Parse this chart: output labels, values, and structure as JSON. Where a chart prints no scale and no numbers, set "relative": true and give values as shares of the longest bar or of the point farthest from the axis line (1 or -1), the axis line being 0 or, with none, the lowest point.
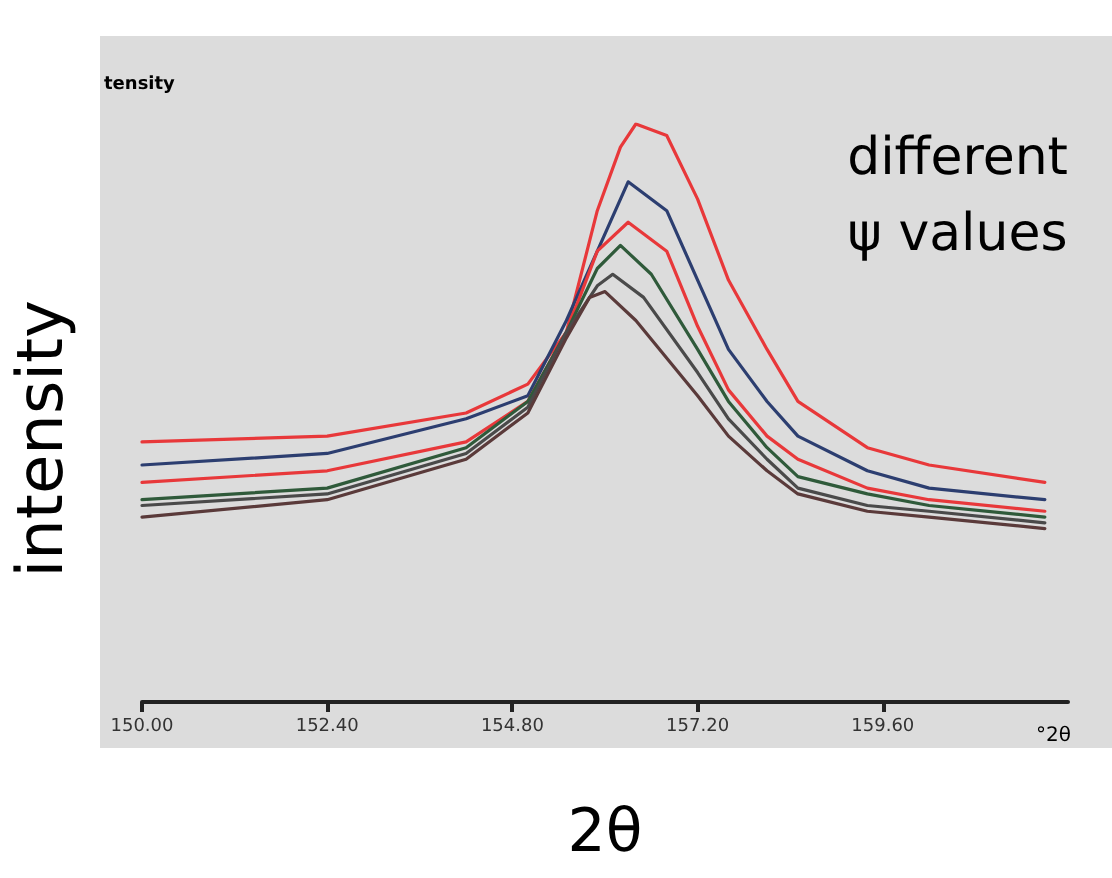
{
  "chart_data": {
    "type": "line",
    "relative": true,
    "xlabel": "2θ",
    "ylabel": "intensity",
    "annotations": [
      "different\nψ values",
      "tensity",
      "°2θ"
    ],
    "xlim": [
      150,
      162
    ],
    "xticks": [
      {
        "value": 150,
        "label": "150.00"
      },
      {
        "value": 152.4,
        "label": "152.40"
      },
      {
        "value": 154.8,
        "label": "154.80"
      },
      {
        "value": 157.2,
        "label": "157.20"
      },
      {
        "value": 159.6,
        "label": "159.60"
      }
    ],
    "grid": false,
    "marker": "none",
    "line_style": "solid",
    "series": [
      {
        "color": "#e8383a",
        "x": [
          150,
          152.4,
          154.2,
          155,
          155.5,
          155.9,
          156.2,
          156.4,
          156.8,
          157.2,
          157.6,
          158.1,
          158.5,
          159.4,
          160.2,
          161.7
        ],
        "values": [
          0.45,
          0.46,
          0.5,
          0.55,
          0.64,
          0.85,
          0.96,
          1,
          0.98,
          0.87,
          0.73,
          0.61,
          0.52,
          0.44,
          0.41,
          0.38
        ]
      },
      {
        "color": "#2c3e70",
        "x": [
          150,
          152.4,
          154.2,
          155,
          155.5,
          156.3,
          156.8,
          157.2,
          157.6,
          158.1,
          158.5,
          159.4,
          160.2,
          161.7
        ],
        "values": [
          0.41,
          0.43,
          0.49,
          0.53,
          0.66,
          0.9,
          0.85,
          0.73,
          0.61,
          0.52,
          0.46,
          0.4,
          0.37,
          0.35
        ]
      },
      {
        "color": "#e8383a",
        "x": [
          150,
          152.4,
          154.2,
          155,
          155.5,
          155.9,
          156.3,
          156.8,
          157.2,
          157.6,
          158.1,
          158.5,
          159.4,
          160.2,
          161.7
        ],
        "values": [
          0.38,
          0.4,
          0.45,
          0.52,
          0.64,
          0.78,
          0.83,
          0.78,
          0.65,
          0.54,
          0.46,
          0.42,
          0.37,
          0.35,
          0.33
        ]
      },
      {
        "color": "#2f5a3a",
        "x": [
          150,
          152.4,
          154.2,
          155,
          155.5,
          155.9,
          156.2,
          156.6,
          157.2,
          157.6,
          158.1,
          158.5,
          159.4,
          160.2,
          161.7
        ],
        "values": [
          0.35,
          0.37,
          0.44,
          0.52,
          0.64,
          0.75,
          0.79,
          0.74,
          0.61,
          0.52,
          0.44,
          0.39,
          0.36,
          0.34,
          0.32
        ]
      },
      {
        "color": "#4a4a4a",
        "x": [
          150,
          152.4,
          154.2,
          155,
          155.5,
          155.9,
          156.1,
          156.5,
          157.2,
          157.6,
          158.1,
          158.5,
          159.4,
          160.2,
          161.7
        ],
        "values": [
          0.34,
          0.36,
          0.43,
          0.51,
          0.64,
          0.72,
          0.74,
          0.7,
          0.57,
          0.49,
          0.42,
          0.37,
          0.34,
          0.33,
          0.31
        ]
      },
      {
        "color": "#5a3a3a",
        "x": [
          150,
          152.4,
          154.2,
          155,
          155.5,
          155.8,
          156,
          156.4,
          157.2,
          157.6,
          158.1,
          158.5,
          159.4,
          160.2,
          161.7
        ],
        "values": [
          0.32,
          0.35,
          0.42,
          0.5,
          0.63,
          0.7,
          0.71,
          0.66,
          0.53,
          0.46,
          0.4,
          0.36,
          0.33,
          0.32,
          0.3
        ]
      }
    ]
  }
}
